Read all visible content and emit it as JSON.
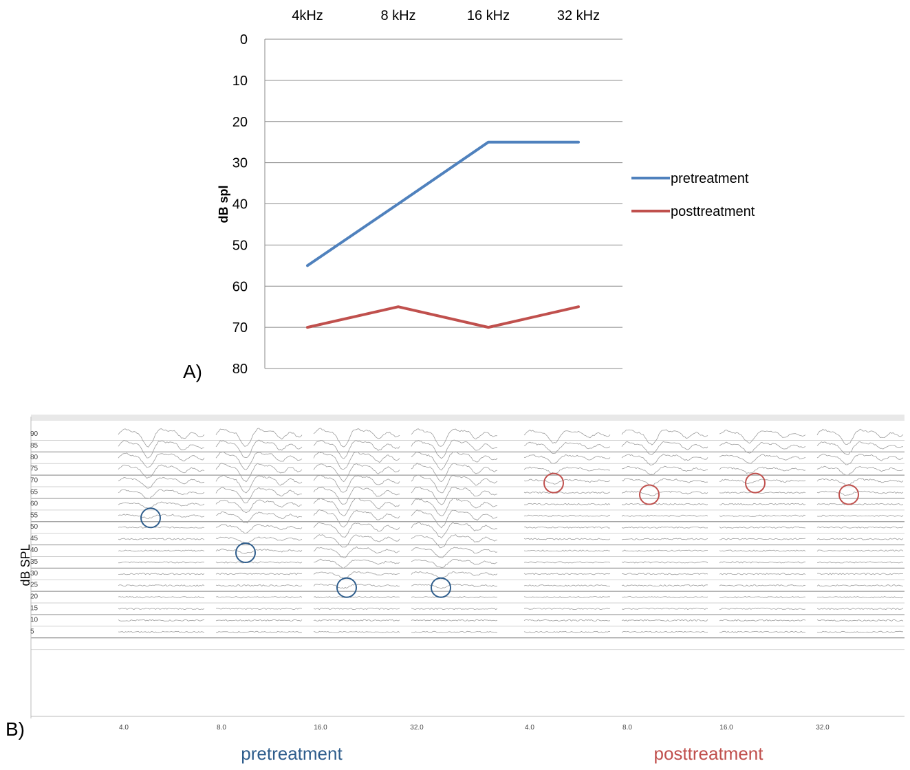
{
  "chart_data": [
    {
      "panel_label": "A)",
      "type": "line",
      "categories": [
        "4kHz",
        "8 kHz",
        "16 kHz",
        "32 kHz"
      ],
      "ylabel": "dB spl",
      "ylim": [
        0,
        80
      ],
      "y_axis_inverted": true,
      "y_ticks": [
        "0",
        "10",
        "20",
        "30",
        "40",
        "50",
        "60",
        "70",
        "80"
      ],
      "x_labels_position": "top",
      "grid": true,
      "legend_position": "right",
      "series": [
        {
          "name": "pretreatment",
          "values": [
            55,
            40,
            25,
            25
          ],
          "color": "#4f81bd"
        },
        {
          "name": "posttreatment",
          "values": [
            70,
            65,
            70,
            65
          ],
          "color": "#c0504d"
        }
      ]
    },
    {
      "panel_label": "B)",
      "type": "line",
      "ylabel": "dB SPL",
      "y_level_labels": [
        "90",
        "85",
        "80",
        "75",
        "70",
        "65",
        "60",
        "55",
        "50",
        "45",
        "40",
        "35",
        "30",
        "25",
        "20",
        "15",
        "10",
        "5"
      ],
      "groups": [
        {
          "name": "pretreatment",
          "color": "#2e5d8c",
          "frequency_labels": [
            "4.0",
            "8.0",
            "16.0",
            "32.0"
          ],
          "thresholds": [
            55,
            40,
            25,
            25
          ]
        },
        {
          "name": "posttreatment",
          "color": "#c0504d",
          "frequency_labels": [
            "4.0",
            "8.0",
            "16.0",
            "32.0"
          ],
          "thresholds": [
            70,
            65,
            70,
            65
          ]
        }
      ]
    }
  ]
}
